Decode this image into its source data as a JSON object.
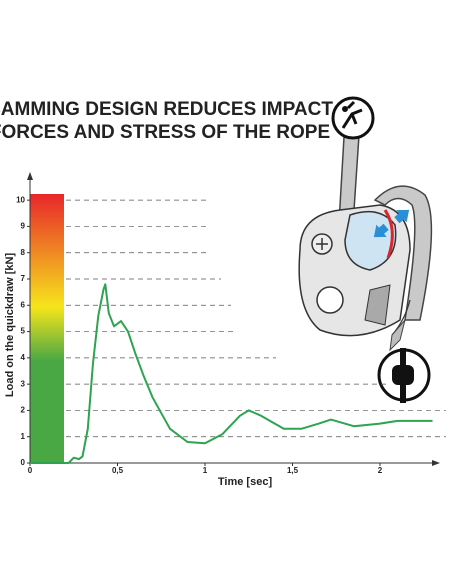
{
  "chart_data": {
    "type": "line",
    "title": "CAMMING DESIGN REDUCES IMPACT FORCES AND STRESS OF THE ROPE",
    "x_label": "Time [sec]",
    "y_label": "Load on the quickdraw [kN]",
    "xlim": [
      0,
      2.3
    ],
    "ylim": [
      0,
      10.5
    ],
    "xticks": [
      0,
      {
        "value": 0.5,
        "label": "0,5"
      },
      1,
      {
        "value": 1.5,
        "label": "1,5"
      },
      2
    ],
    "yticks": [
      0,
      1,
      2,
      3,
      4,
      5,
      6,
      7,
      8,
      9,
      10
    ],
    "grid": true,
    "color_scale": [
      "#e8262b",
      "#f6e51b",
      "#4aa844"
    ],
    "x": [
      0,
      0.15,
      0.22,
      0.25,
      0.28,
      0.3,
      0.33,
      0.36,
      0.39,
      0.42,
      0.43,
      0.45,
      0.48,
      0.52,
      0.56,
      0.6,
      0.65,
      0.7,
      0.8,
      0.9,
      1.0,
      1.1,
      1.2,
      1.25,
      1.32,
      1.45,
      1.55,
      1.65,
      1.72,
      1.85,
      2.0,
      2.1,
      2.3
    ],
    "series": [
      {
        "name": "Load",
        "color": "#2ea350",
        "values": [
          0,
          0,
          0,
          0.2,
          0.15,
          0.25,
          1.3,
          3.8,
          5.6,
          6.6,
          6.8,
          5.7,
          5.2,
          5.4,
          5.0,
          4.2,
          3.3,
          2.5,
          1.3,
          0.8,
          0.75,
          1.1,
          1.8,
          2.0,
          1.8,
          1.3,
          1.3,
          1.5,
          1.65,
          1.4,
          1.5,
          1.6,
          1.6
        ]
      }
    ]
  }
}
